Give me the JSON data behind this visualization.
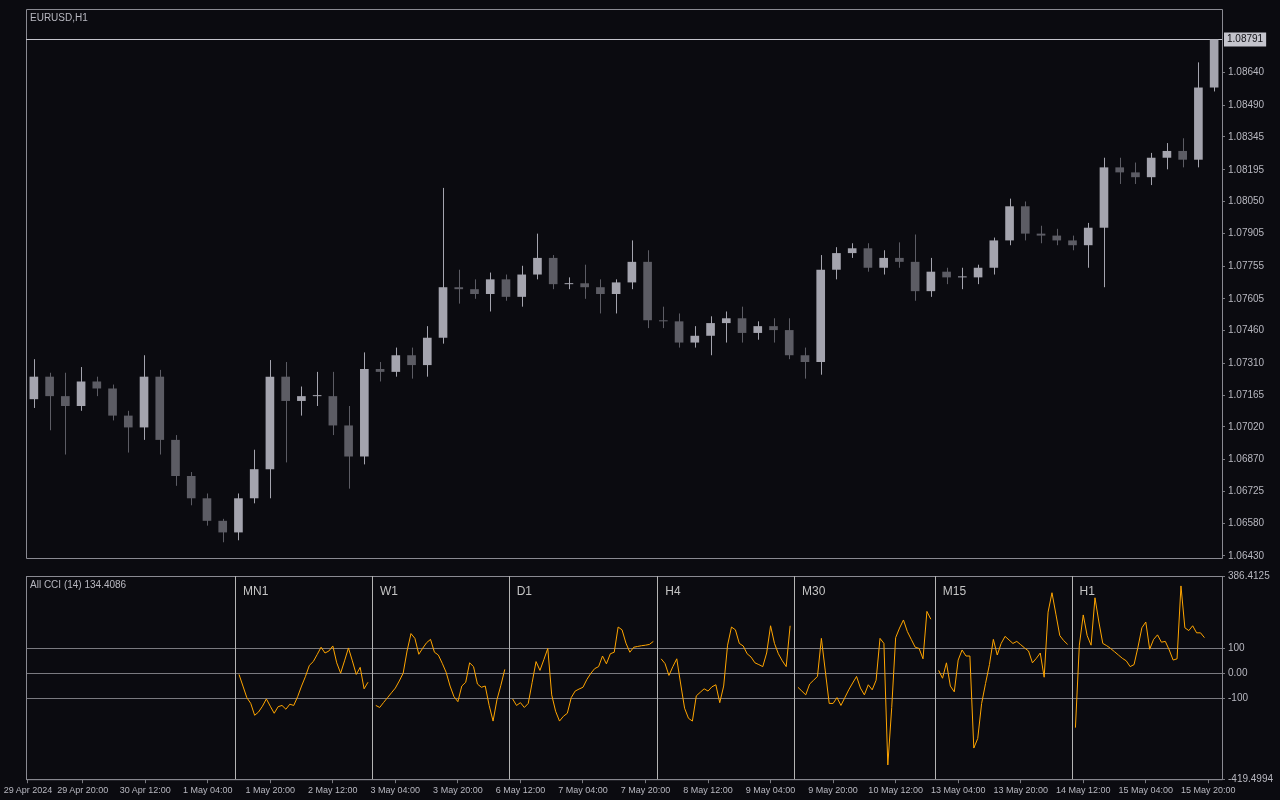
{
  "chart_data": [
    {
      "type": "candlestick",
      "title": "EURUSD,H1",
      "categories": [
        null,
        null,
        null,
        null,
        null,
        null,
        null,
        null,
        null,
        null,
        null,
        null,
        null,
        null,
        null,
        null,
        null,
        null,
        null,
        null,
        null,
        null,
        null,
        null,
        null,
        null,
        null,
        null,
        null,
        null,
        null,
        null,
        null,
        null,
        null,
        null,
        null,
        null,
        null,
        null,
        null,
        null,
        null,
        null,
        null,
        null,
        null,
        null,
        null,
        null,
        null,
        null,
        null,
        null,
        null,
        null,
        null,
        null,
        null,
        null,
        null,
        null,
        null,
        null,
        null,
        null,
        null,
        null,
        null,
        null,
        null,
        null,
        null,
        null,
        null,
        null
      ],
      "ohlc": [
        [
          1.07146,
          1.07329,
          1.07106,
          1.07249
        ],
        [
          1.07249,
          1.07267,
          1.07004,
          1.0716
        ],
        [
          1.0716,
          1.07267,
          1.06893,
          1.07115
        ],
        [
          1.07115,
          1.07293,
          1.07093,
          1.07227
        ],
        [
          1.07227,
          1.07249,
          1.0716,
          1.07195
        ],
        [
          1.07195,
          1.07213,
          1.07049,
          1.07071
        ],
        [
          1.07071,
          1.07093,
          1.06902,
          1.07017
        ],
        [
          1.07017,
          1.07347,
          1.0696,
          1.07249
        ],
        [
          1.07249,
          1.0728,
          1.06893,
          1.0696
        ],
        [
          1.0696,
          1.06982,
          1.0675,
          1.06795
        ],
        [
          1.06795,
          1.06813,
          1.06661,
          1.06693
        ],
        [
          1.06693,
          1.06715,
          1.06568,
          1.0659
        ],
        [
          1.0659,
          1.06599,
          1.06492,
          1.06537
        ],
        [
          1.06537,
          1.06715,
          1.06501,
          1.06693
        ],
        [
          1.06693,
          1.06915,
          1.0667,
          1.06826
        ],
        [
          1.06826,
          1.07325,
          1.06693,
          1.07249
        ],
        [
          1.07249,
          1.07316,
          1.06857,
          1.07138
        ],
        [
          1.07138,
          1.07204,
          1.07071,
          1.0716
        ],
        [
          1.0716,
          1.07271,
          1.07115,
          1.0716
        ],
        [
          1.0716,
          1.07271,
          1.06982,
          1.07026
        ],
        [
          1.07026,
          1.07115,
          1.06737,
          1.06884
        ],
        [
          1.06884,
          1.0736,
          1.06848,
          1.07284
        ],
        [
          1.07284,
          1.07316,
          1.07227,
          1.07271
        ],
        [
          1.07271,
          1.07382,
          1.07249,
          1.07347
        ],
        [
          1.07347,
          1.07382,
          1.0724,
          1.07302
        ],
        [
          1.07302,
          1.0748,
          1.07249,
          1.07427
        ],
        [
          1.07427,
          1.08112,
          1.074,
          1.07658
        ],
        [
          1.07658,
          1.07738,
          1.07583,
          1.07649
        ],
        [
          1.07649,
          1.07694,
          1.07605,
          1.07627
        ],
        [
          1.07627,
          1.07725,
          1.07547,
          1.07694
        ],
        [
          1.07694,
          1.07716,
          1.07596,
          1.07614
        ],
        [
          1.07614,
          1.07756,
          1.07569,
          1.07716
        ],
        [
          1.07716,
          1.07903,
          1.07694,
          1.07792
        ],
        [
          1.07792,
          1.07805,
          1.07649,
          1.07672
        ],
        [
          1.07672,
          1.07703,
          1.07649,
          1.07676
        ],
        [
          1.07676,
          1.07761,
          1.07605,
          1.07658
        ],
        [
          1.07658,
          1.07694,
          1.07538,
          1.07627
        ],
        [
          1.07627,
          1.07694,
          1.07538,
          1.0768
        ],
        [
          1.0768,
          1.07872,
          1.07649,
          1.07774
        ],
        [
          1.07774,
          1.07827,
          1.07471,
          1.07507
        ],
        [
          1.07507,
          1.07569,
          1.07471,
          1.07502
        ],
        [
          1.07502,
          1.07538,
          1.07382,
          1.07405
        ],
        [
          1.07405,
          1.0748,
          1.07382,
          1.07436
        ],
        [
          1.07436,
          1.07525,
          1.07347,
          1.07494
        ],
        [
          1.07494,
          1.07547,
          1.07405,
          1.07516
        ],
        [
          1.07516,
          1.07569,
          1.07405,
          1.07449
        ],
        [
          1.07449,
          1.07502,
          1.07418,
          1.0748
        ],
        [
          1.0748,
          1.07516,
          1.07405,
          1.07462
        ],
        [
          1.07462,
          1.07516,
          1.07329,
          1.07347
        ],
        [
          1.07347,
          1.07382,
          1.0724,
          1.07316
        ],
        [
          1.07316,
          1.07805,
          1.07258,
          1.07738
        ],
        [
          1.07738,
          1.07841,
          1.07694,
          1.07814
        ],
        [
          1.07814,
          1.07859,
          1.07792,
          1.07836
        ],
        [
          1.07836,
          1.07859,
          1.07729,
          1.07747
        ],
        [
          1.07747,
          1.07827,
          1.07716,
          1.07792
        ],
        [
          1.07792,
          1.07863,
          1.07747,
          1.07774
        ],
        [
          1.07774,
          1.07899,
          1.07596,
          1.0764
        ],
        [
          1.0764,
          1.07792,
          1.07614,
          1.07729
        ],
        [
          1.07729,
          1.07747,
          1.07672,
          1.07703
        ],
        [
          1.07703,
          1.07747,
          1.07649,
          1.07703
        ],
        [
          1.07703,
          1.07761,
          1.07672,
          1.07747
        ],
        [
          1.07747,
          1.07885,
          1.07716,
          1.07872
        ],
        [
          1.07872,
          1.08063,
          1.0785,
          1.08028
        ],
        [
          1.08028,
          1.0805,
          1.07872,
          1.07903
        ],
        [
          1.07903,
          1.07939,
          1.07859,
          1.07894
        ],
        [
          1.07894,
          1.07925,
          1.0785,
          1.07872
        ],
        [
          1.07872,
          1.07894,
          1.07827,
          1.0785
        ],
        [
          1.0785,
          1.07952,
          1.07747,
          1.0793
        ],
        [
          1.0793,
          1.0825,
          1.07658,
          1.08206
        ],
        [
          1.08206,
          1.0825,
          1.0813,
          1.08183
        ],
        [
          1.08183,
          1.08228,
          1.0813,
          1.08161
        ],
        [
          1.08161,
          1.08272,
          1.08125,
          1.0825
        ],
        [
          1.0825,
          1.08317,
          1.08197,
          1.08281
        ],
        [
          1.08281,
          1.08339,
          1.08206,
          1.08241
        ],
        [
          1.08241,
          1.08686,
          1.08206,
          1.08571
        ],
        [
          1.08571,
          1.08791,
          1.08553,
          1.08791
        ]
      ],
      "colors": [
        "#a4a4ae",
        "#5c5c64",
        "#5c5c64",
        "#a4a4ae",
        "#5c5c64",
        "#5c5c64",
        "#5c5c64",
        "#a4a4ae",
        "#5c5c64",
        "#5c5c64",
        "#5c5c64",
        "#5c5c64",
        "#5c5c64",
        "#a4a4ae",
        "#a4a4ae",
        "#a4a4ae",
        "#5c5c64",
        "#a4a4ae",
        "#a4a4ae",
        "#5c5c64",
        "#5c5c64",
        "#a4a4ae",
        "#5c5c64",
        "#a4a4ae",
        "#5c5c64",
        "#a4a4ae",
        "#a4a4ae",
        "#5c5c64",
        "#5c5c64",
        "#a4a4ae",
        "#5c5c64",
        "#a4a4ae",
        "#a4a4ae",
        "#5c5c64",
        "#a4a4ae",
        "#5c5c64",
        "#5c5c64",
        "#a4a4ae",
        "#a4a4ae",
        "#5c5c64",
        "#5c5c64",
        "#5c5c64",
        "#a4a4ae",
        "#a4a4ae",
        "#a4a4ae",
        "#5c5c64",
        "#a4a4ae",
        "#5c5c64",
        "#5c5c64",
        "#5c5c64",
        "#a4a4ae",
        "#a4a4ae",
        "#a4a4ae",
        "#5c5c64",
        "#a4a4ae",
        "#5c5c64",
        "#5c5c64",
        "#a4a4ae",
        "#5c5c64",
        "#a4a4ae",
        "#a4a4ae",
        "#a4a4ae",
        "#a4a4ae",
        "#5c5c64",
        "#5c5c64",
        "#5c5c64",
        "#5c5c64",
        "#a4a4ae",
        "#a4a4ae",
        "#5c5c64",
        "#5c5c64",
        "#a4a4ae",
        "#a4a4ae",
        "#5c5c64",
        "#a4a4ae",
        "#a4a4ae"
      ],
      "ylim": [
        1.0642,
        1.0893
      ],
      "yticks": [
        {
          "value": 1.0643,
          "label": "1.06430"
        },
        {
          "value": 1.0658,
          "label": "1.06580"
        },
        {
          "value": 1.06725,
          "label": "1.06725"
        },
        {
          "value": 1.0687,
          "label": "1.06870"
        },
        {
          "value": 1.0702,
          "label": "1.07020"
        },
        {
          "value": 1.07165,
          "label": "1.07165"
        },
        {
          "value": 1.0731,
          "label": "1.07310"
        },
        {
          "value": 1.0746,
          "label": "1.07460"
        },
        {
          "value": 1.07605,
          "label": "1.07605"
        },
        {
          "value": 1.07755,
          "label": "1.07755"
        },
        {
          "value": 1.07905,
          "label": "1.07905"
        },
        {
          "value": 1.0805,
          "label": "1.08050"
        },
        {
          "value": 1.08195,
          "label": "1.08195"
        },
        {
          "value": 1.08345,
          "label": "1.08345"
        },
        {
          "value": 1.0849,
          "label": "1.08490"
        },
        {
          "value": 1.0864,
          "label": "1.08640"
        }
      ],
      "tick_labels": "y",
      "ref_lines": [
        {
          "axis": "y",
          "value": 1.08791,
          "label": "1.08791",
          "color": "#c4c4cc"
        }
      ]
    },
    {
      "type": "line",
      "title": "All CCI (14) 134.4086",
      "categories": [
        "29 Apr 2024",
        null,
        null,
        null,
        null,
        null,
        null,
        null,
        null,
        null,
        null,
        null,
        null,
        null,
        "29 Apr 20:00",
        null,
        null,
        null,
        null,
        null,
        null,
        null,
        null,
        null,
        null,
        null,
        null,
        null,
        null,
        null,
        "30 Apr 12:00",
        null,
        null,
        null,
        null,
        null,
        null,
        null,
        null,
        null,
        null,
        null,
        null,
        null,
        null,
        null,
        "1 May 04:00",
        null,
        null,
        null,
        null,
        null,
        null,
        null,
        null,
        null,
        null,
        null,
        null,
        null,
        null,
        null,
        "1 May 20:00",
        null,
        null,
        null,
        null,
        null,
        null,
        null,
        null,
        null,
        null,
        null,
        null,
        null,
        null,
        null,
        "2 May 12:00",
        null,
        null,
        null,
        null,
        null,
        null,
        null,
        null,
        null,
        null,
        null,
        null,
        null,
        null,
        null,
        "3 May 04:00",
        null,
        null,
        null,
        null,
        null,
        null,
        null,
        null,
        null,
        null,
        null,
        null,
        null,
        null,
        null,
        "3 May 20:00",
        null,
        null,
        null,
        null,
        null,
        null,
        null,
        null,
        null,
        null,
        null,
        null,
        null,
        null,
        null,
        "6 May 12:00",
        null,
        null,
        null,
        null,
        null,
        null,
        null,
        null,
        null,
        null,
        null,
        null,
        null,
        null,
        null,
        "7 May 04:00",
        null,
        null,
        null,
        null,
        null,
        null,
        null,
        null,
        null,
        null,
        null,
        null,
        null,
        null,
        null,
        "7 May 20:00",
        null,
        null,
        null,
        null,
        null,
        null,
        null,
        null,
        null,
        null,
        null,
        null,
        null,
        null,
        null,
        "8 May 12:00",
        null,
        null,
        null,
        null,
        null,
        null,
        null,
        null,
        null,
        null,
        null,
        null,
        null,
        null,
        null,
        "9 May 04:00",
        null,
        null,
        null,
        null,
        null,
        null,
        null,
        null,
        null,
        null,
        null,
        null,
        null,
        null,
        null,
        "9 May 20:00",
        null,
        null,
        null,
        null,
        null,
        null,
        null,
        null,
        null,
        null,
        null,
        null,
        null,
        null,
        null,
        "10 May 12:00",
        null,
        null,
        null,
        null,
        null,
        null,
        null,
        null,
        null,
        null,
        null,
        null,
        null,
        null,
        null,
        "13 May 04:00",
        null,
        null,
        null,
        null,
        null,
        null,
        null,
        null,
        null,
        null,
        null,
        null,
        null,
        null,
        null,
        "13 May 20:00",
        null,
        null,
        null,
        null,
        null,
        null,
        null,
        null,
        null,
        null,
        null,
        null,
        null,
        null,
        null,
        "14 May 12:00",
        null,
        null,
        null,
        null,
        null,
        null,
        null,
        null,
        null,
        null,
        null,
        null,
        null,
        null,
        null,
        "15 May 04:00",
        null,
        null,
        null,
        null,
        null,
        null,
        null,
        null,
        null,
        null,
        null,
        null,
        null,
        null,
        null,
        "15 May 20:00",
        null,
        null,
        null
      ],
      "ylim": [
        -419.4994,
        386.4125
      ],
      "yticks": [
        386.4125,
        100,
        {
          "value": 0,
          "label": "0.00"
        },
        -100,
        -419.4994
      ],
      "grid": "y",
      "annotations": [
        "MN1",
        "W1",
        "D1",
        "H4",
        "M30",
        "M15",
        "H1"
      ],
      "series": [
        {
          "color": "#ffa500",
          "values": [
            null,
            null,
            null,
            null,
            null,
            null,
            null,
            null,
            null,
            null,
            null,
            null,
            null,
            null,
            null,
            null,
            null,
            null,
            null,
            null,
            null,
            null,
            null,
            null,
            null,
            null,
            null,
            null,
            null,
            null,
            null,
            null,
            null,
            null,
            null,
            null,
            null,
            null,
            null,
            null,
            null,
            null,
            null,
            null,
            null,
            null,
            null,
            null,
            null,
            null,
            null,
            null,
            null,
            null,
            -4,
            -50,
            -96,
            -119,
            -166,
            -153,
            -130,
            -101,
            -130,
            -158,
            -132,
            -127,
            -142,
            -122,
            -127,
            -92,
            -50,
            -12,
            32,
            47,
            75,
            104,
            81,
            89,
            109,
            42,
            1,
            50,
            101,
            50,
            -4,
            24,
            -61,
            -35,
            null,
            -127,
            -135,
            -115,
            -96,
            -77,
            -58,
            -30,
            1,
            89,
            158,
            139,
            76,
            100,
            122,
            135,
            84,
            73,
            40,
            4,
            -50,
            -92,
            -112,
            -50,
            -35,
            42,
            27,
            -42,
            -55,
            -50,
            -127,
            -189,
            -104,
            -47,
            16,
            null,
            -101,
            -127,
            -116,
            -135,
            -119,
            -36,
            47,
            12,
            55,
            99,
            -85,
            -150,
            -189,
            -170,
            -158,
            -96,
            -70,
            -62,
            -55,
            -24,
            0,
            19,
            27,
            69,
            38,
            78,
            84,
            184,
            173,
            120,
            84,
            104,
            107,
            110,
            112,
            115,
            127,
            null,
            58,
            39,
            -8,
            27,
            58,
            -42,
            -138,
            -178,
            -189,
            -89,
            -75,
            -61,
            -70,
            -53,
            -45,
            -116,
            -50,
            112,
            184,
            173,
            119,
            109,
            78,
            65,
            42,
            35,
            27,
            81,
            189,
            119,
            78,
            50,
            27,
            189,
            null,
            -55,
            -70,
            -85,
            -42,
            -27,
            -12,
            139,
            10,
            -119,
            -119,
            -96,
            -127,
            -96,
            -65,
            -38,
            -12,
            -58,
            -85,
            -45,
            -65,
            -27,
            139,
            119,
            -363,
            -135,
            142,
            180,
            212,
            166,
            135,
            104,
            99,
            58,
            246,
            215,
            null,
            12,
            -19,
            42,
            -50,
            -73,
            53,
            93,
            69,
            69,
            -296,
            -258,
            -119,
            -40,
            35,
            135,
            73,
            119,
            147,
            133,
            119,
            127,
            114,
            101,
            89,
            42,
            60,
            81,
            -15,
            243,
            320,
            235,
            150,
            130,
            115,
            null,
            -215,
            112,
            232,
            150,
            112,
            300,
            204,
            119,
            110,
            99,
            86,
            73,
            60,
            50,
            27,
            35,
            104,
            181,
            204,
            96,
            135,
            153,
            124,
            127,
            93,
            53,
            58,
            347,
            181,
            170,
            189,
            161,
            161,
            142,
            null,
            null,
            null,
            null
          ]
        }
      ]
    }
  ]
}
